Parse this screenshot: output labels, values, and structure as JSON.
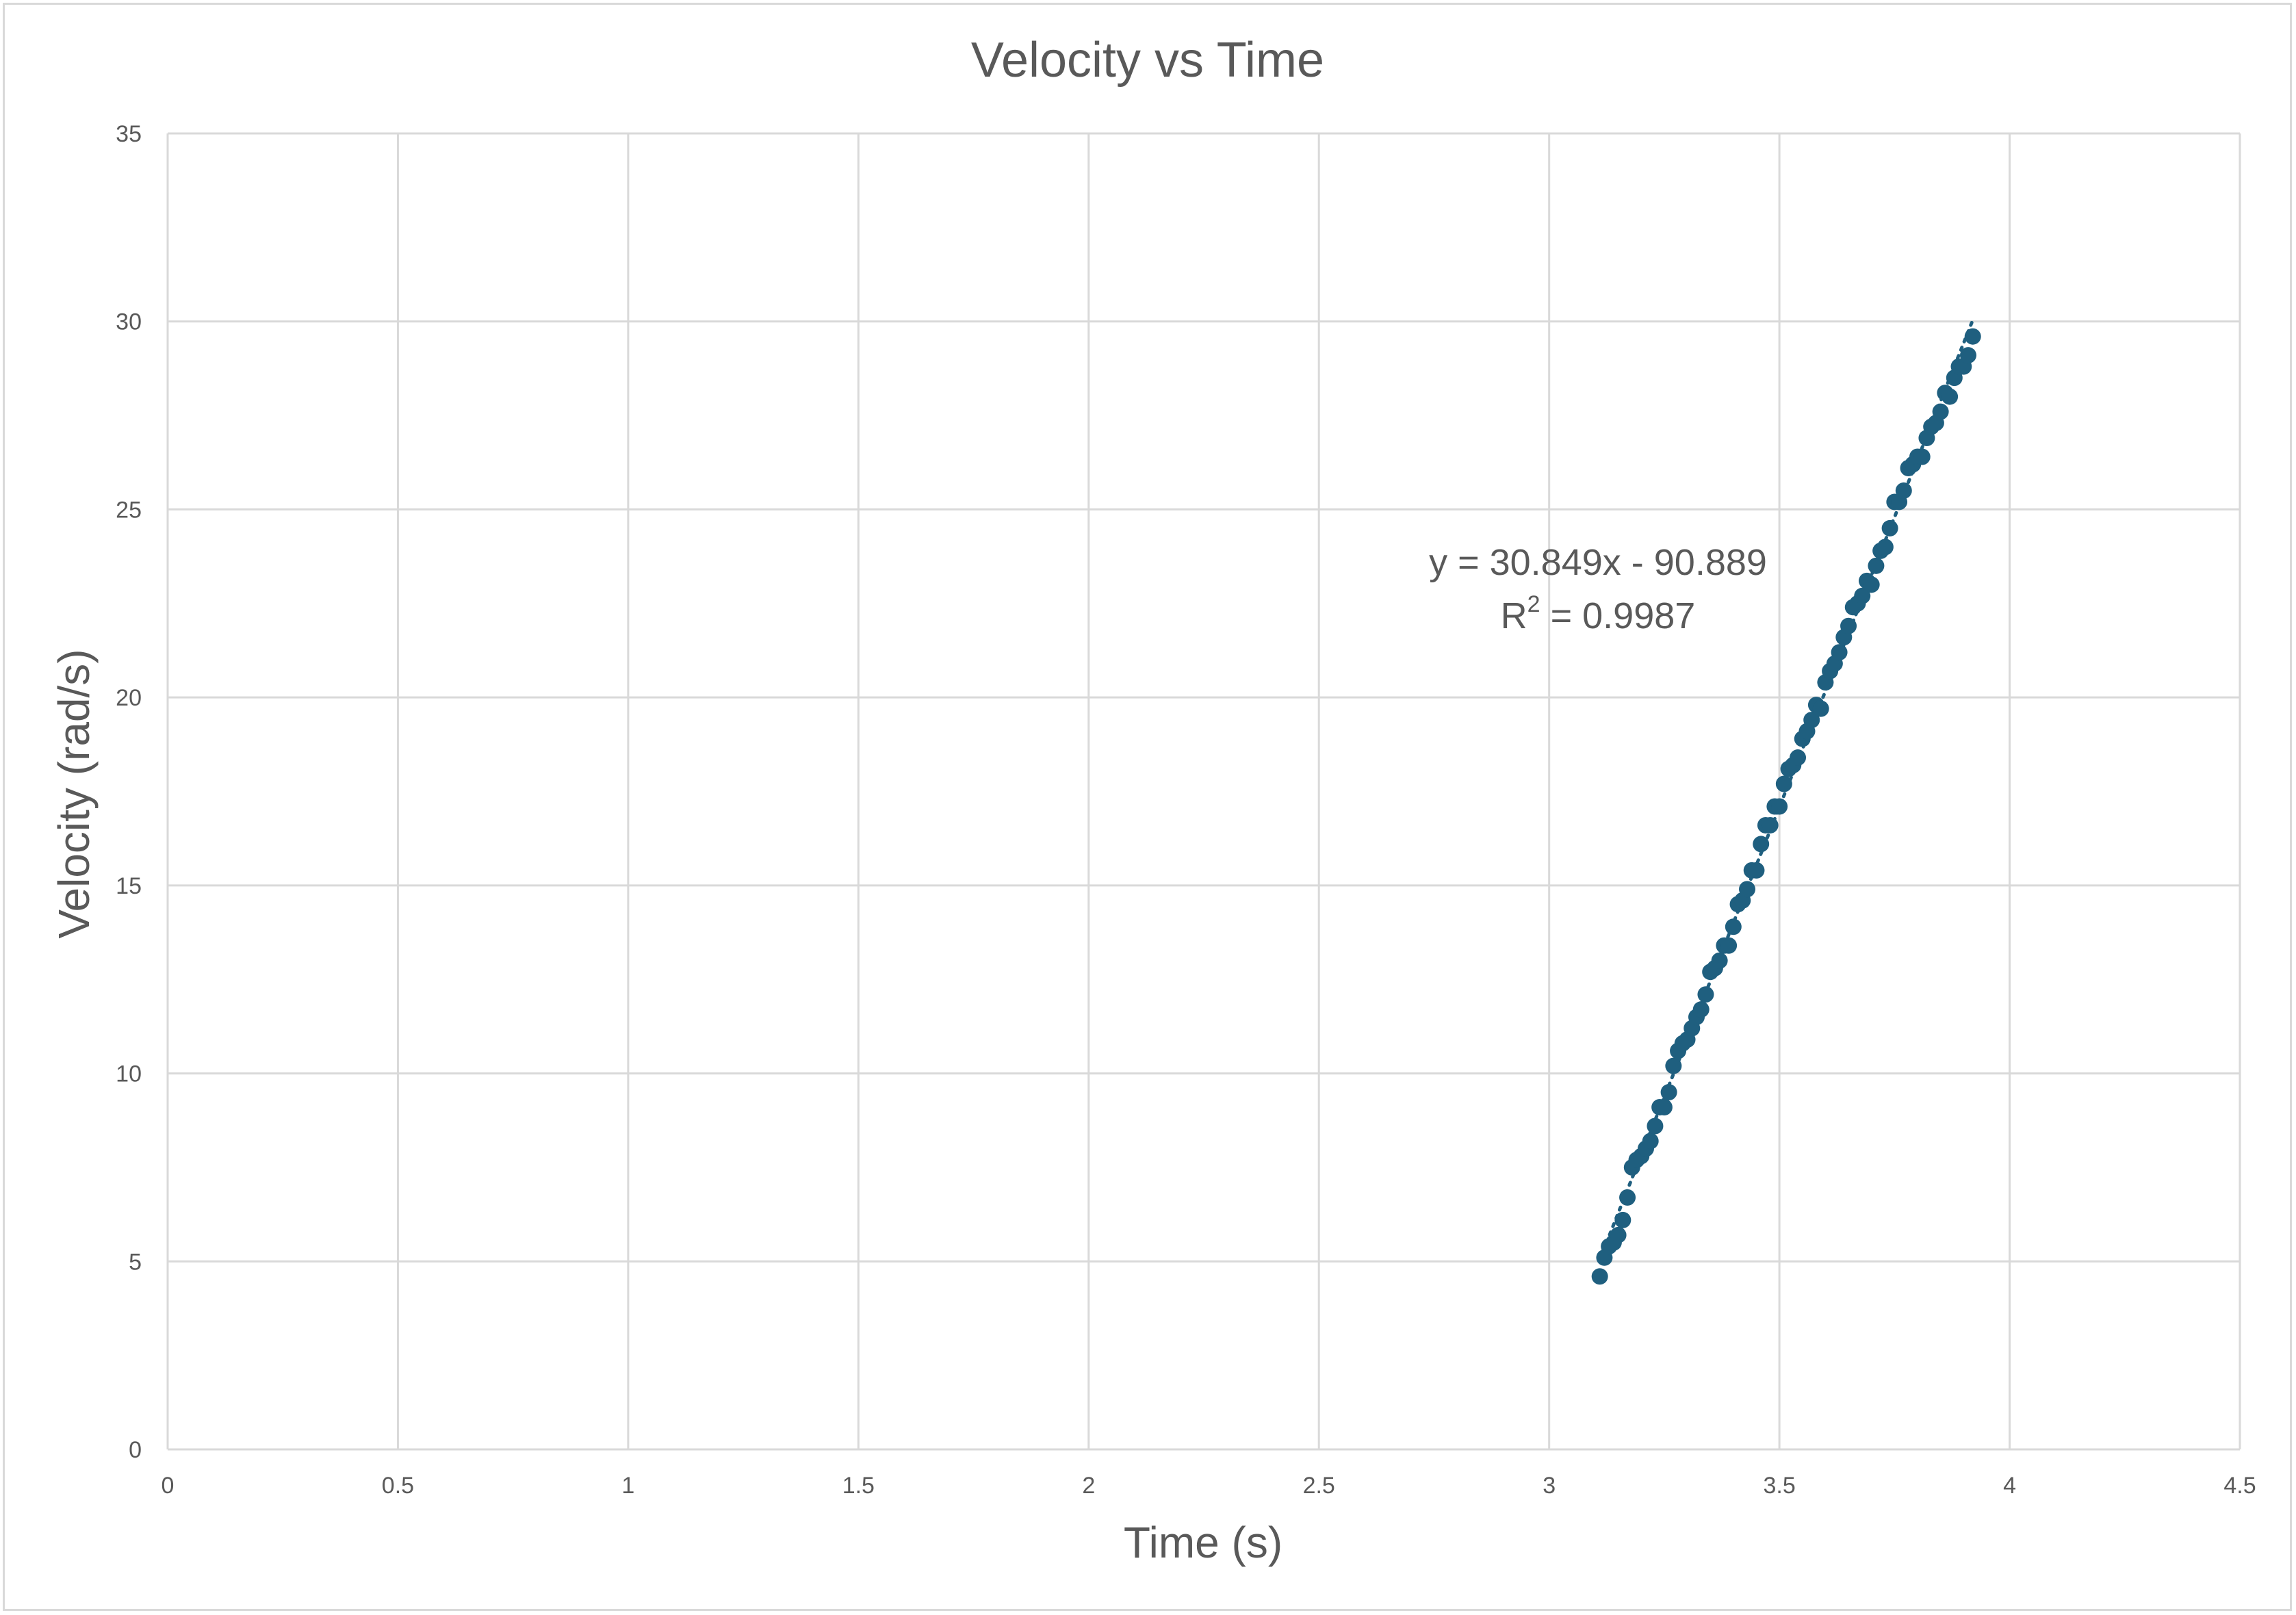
{
  "chart_data": {
    "type": "scatter",
    "title": "Velocity vs Time",
    "xlabel": "Time (s)",
    "ylabel": "Velocity (rad/s)",
    "xlim": [
      0,
      4.5
    ],
    "ylim": [
      0,
      35
    ],
    "x_ticks": [
      "0",
      "0.5",
      "1",
      "1.5",
      "2",
      "2.5",
      "3",
      "3.5",
      "4",
      "4.5"
    ],
    "y_ticks": [
      "0",
      "5",
      "10",
      "15",
      "20",
      "25",
      "30",
      "35"
    ],
    "x_tick_values": [
      0,
      0.5,
      1,
      1.5,
      2,
      2.5,
      3,
      3.5,
      4,
      4.5
    ],
    "y_tick_values": [
      0,
      5,
      10,
      15,
      20,
      25,
      30,
      35
    ],
    "grid": true,
    "marker_color": "#1f5f7f",
    "gridline_color": "#d9d9d9",
    "trendline": {
      "slope": 30.849,
      "intercept": -90.889,
      "x_range": [
        3.11,
        3.92
      ],
      "style": "dotted",
      "equation_label": "y = 30.849x - 90.889",
      "r2_prefix": "R",
      "r2_exp": "2",
      "r2_value": " = 0.9987"
    },
    "series": [
      {
        "x": [
          3.11,
          3.12,
          3.13,
          3.14,
          3.15,
          3.16,
          3.17,
          3.18,
          3.19,
          3.2,
          3.21,
          3.22,
          3.23,
          3.24,
          3.25,
          3.26,
          3.27,
          3.28,
          3.29,
          3.3,
          3.31,
          3.32,
          3.33,
          3.34,
          3.35,
          3.36,
          3.37,
          3.38,
          3.39,
          3.4,
          3.41,
          3.42,
          3.43,
          3.44,
          3.45,
          3.46,
          3.47,
          3.48,
          3.49,
          3.5,
          3.51,
          3.52,
          3.53,
          3.54,
          3.55,
          3.56,
          3.57,
          3.58,
          3.59,
          3.6,
          3.61,
          3.62,
          3.63,
          3.64,
          3.65,
          3.66,
          3.67,
          3.68,
          3.69,
          3.7,
          3.71,
          3.72,
          3.73,
          3.74,
          3.75,
          3.76,
          3.77,
          3.78,
          3.79,
          3.8,
          3.81,
          3.82,
          3.83,
          3.84,
          3.85,
          3.86,
          3.87,
          3.88,
          3.89,
          3.9,
          3.91,
          3.92
        ],
        "y": [
          4.6,
          5.1,
          5.4,
          5.5,
          5.7,
          6.1,
          6.7,
          7.5,
          7.7,
          7.8,
          8.0,
          8.2,
          8.6,
          9.1,
          9.1,
          9.5,
          10.2,
          10.6,
          10.8,
          10.9,
          11.2,
          11.5,
          11.7,
          12.1,
          12.7,
          12.8,
          13.0,
          13.4,
          13.4,
          13.9,
          14.5,
          14.6,
          14.9,
          15.4,
          15.4,
          16.1,
          16.6,
          16.6,
          17.1,
          17.1,
          17.7,
          18.1,
          18.2,
          18.4,
          18.9,
          19.1,
          19.4,
          19.8,
          19.7,
          20.4,
          20.7,
          20.9,
          21.2,
          21.6,
          21.9,
          22.4,
          22.5,
          22.7,
          23.1,
          23.0,
          23.5,
          23.9,
          24.0,
          24.5,
          25.2,
          25.2,
          25.5,
          26.1,
          26.2,
          26.4,
          26.4,
          26.9,
          27.2,
          27.3,
          27.6,
          28.1,
          28.0,
          28.5,
          28.8,
          28.8,
          29.1,
          29.6
        ]
      }
    ]
  }
}
